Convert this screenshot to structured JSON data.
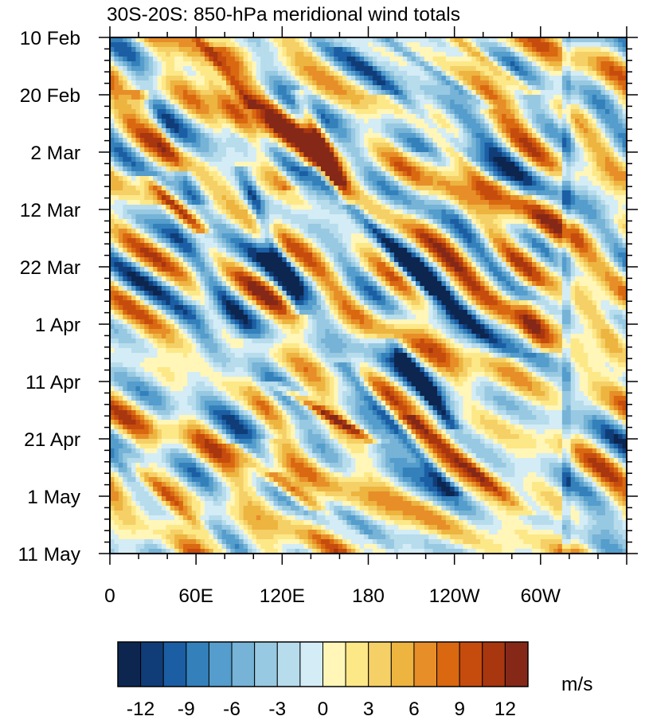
{
  "chart_data": {
    "type": "heatmap",
    "title": "30S-20S: 850-hPa meridional wind totals",
    "y_tick_labels": [
      "10 Feb",
      "20 Feb",
      "2 Mar",
      "12 Mar",
      "22 Mar",
      "1 Apr",
      "11 Apr",
      "21 Apr",
      "1 May",
      "11 May"
    ],
    "x_tick_labels": [
      "0",
      "60E",
      "120E",
      "180",
      "120W",
      "60W"
    ],
    "x_range_deg_east": [
      0,
      360
    ],
    "y_range": [
      "10 Feb",
      "11 May"
    ],
    "colorbar": {
      "unit": "m/s",
      "tick_labels": [
        "-12",
        "-9",
        "-6",
        "-3",
        "0",
        "3",
        "6",
        "9",
        "12"
      ],
      "levels": [
        -12,
        -10.5,
        -9,
        -7.5,
        -6,
        -4.5,
        -3,
        -1.5,
        0,
        1.5,
        3,
        4.5,
        6,
        7.5,
        9,
        10.5,
        12
      ],
      "colors": [
        "#0c2650",
        "#103d78",
        "#1b5ea4",
        "#3480bb",
        "#549dcc",
        "#76b3d6",
        "#98c9e2",
        "#b7dcec",
        "#d3ecf6",
        "#fff6b8",
        "#fde888",
        "#f5d066",
        "#edb440",
        "#e78e28",
        "#d96810",
        "#c64c0e",
        "#a8360e",
        "#862818"
      ]
    },
    "features": [
      {
        "x0": 5,
        "x1": 90,
        "t0": 0.8,
        "t1": 1.02,
        "v": 6,
        "w": 7
      },
      {
        "x0": 28,
        "x1": 58,
        "t0": 0.14,
        "t1": 0.3,
        "v": -9,
        "w": 8
      },
      {
        "x0": 28,
        "x1": 62,
        "t0": 0.28,
        "t1": 0.37,
        "v": 11,
        "w": 7
      },
      {
        "x0": 22,
        "x1": 46,
        "t0": 0.12,
        "t1": 0.24,
        "v": 12,
        "w": 7
      },
      {
        "x0": 55,
        "x1": 115,
        "t0": 0.02,
        "t1": 0.26,
        "v": 8,
        "w": 8
      },
      {
        "x0": 40,
        "x1": 90,
        "t0": 0.35,
        "t1": 0.55,
        "v": -7,
        "w": 10
      },
      {
        "x0": 60,
        "x1": 95,
        "t0": 0.0,
        "t1": 0.12,
        "v": 10,
        "w": 6
      },
      {
        "x0": 85,
        "x1": 150,
        "t0": 0.05,
        "t1": 0.26,
        "v": 7,
        "w": 9
      },
      {
        "x0": 95,
        "x1": 128,
        "t0": 0.28,
        "t1": 0.5,
        "v": -10,
        "w": 6
      },
      {
        "x0": 135,
        "x1": 162,
        "t0": 0.13,
        "t1": 0.3,
        "v": 12,
        "w": 6
      },
      {
        "x0": 140,
        "x1": 185,
        "t0": 0.0,
        "t1": 0.1,
        "v": -6,
        "w": 10
      },
      {
        "x0": 150,
        "x1": 220,
        "t0": 0.28,
        "t1": 0.47,
        "v": -9,
        "w": 7
      },
      {
        "x0": 120,
        "x1": 175,
        "t0": 0.68,
        "t1": 0.77,
        "v": 11,
        "w": 7
      },
      {
        "x0": 170,
        "x1": 232,
        "t0": 0.66,
        "t1": 0.86,
        "v": -10,
        "w": 7
      },
      {
        "x0": 175,
        "x1": 260,
        "t0": 0.05,
        "t1": 0.25,
        "v": -8,
        "w": 8
      },
      {
        "x0": 190,
        "x1": 255,
        "t0": 0.0,
        "t1": 0.12,
        "v": -7,
        "w": 7
      },
      {
        "x0": 240,
        "x1": 290,
        "t0": 0.0,
        "t1": 0.1,
        "v": 9,
        "w": 8
      },
      {
        "x0": 210,
        "x1": 270,
        "t0": 0.45,
        "t1": 0.6,
        "v": -7,
        "w": 9
      },
      {
        "x0": 215,
        "x1": 280,
        "t0": 0.75,
        "t1": 0.9,
        "v": 8,
        "w": 9
      },
      {
        "x0": 120,
        "x1": 190,
        "t0": 0.86,
        "t1": 1.0,
        "v": 8,
        "w": 9
      },
      {
        "x0": 200,
        "x1": 235,
        "t0": 0.6,
        "t1": 0.74,
        "v": -10,
        "w": 6
      },
      {
        "x0": 60,
        "x1": 105,
        "t0": 0.55,
        "t1": 0.75,
        "v": -6,
        "w": 10
      },
      {
        "x0": 90,
        "x1": 135,
        "t0": 0.8,
        "t1": 0.9,
        "v": 7,
        "w": 8
      },
      {
        "x0": 290,
        "x1": 300,
        "t0": 0.52,
        "t1": 0.6,
        "v": 8,
        "w": 10
      },
      {
        "x0": 300,
        "x1": 355,
        "t0": 0.35,
        "t1": 0.62,
        "v": 6,
        "w": 10
      },
      {
        "x0": 225,
        "x1": 285,
        "t0": 0.25,
        "t1": 0.45,
        "v": 6,
        "w": 10
      }
    ]
  }
}
